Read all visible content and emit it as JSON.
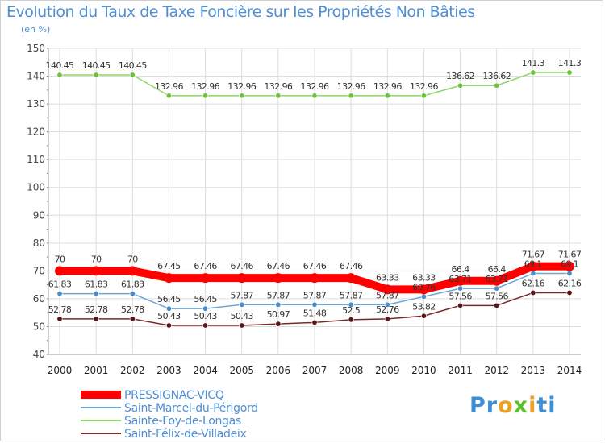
{
  "chart_data": {
    "type": "line",
    "title": "Evolution du Taux de Taxe Foncière sur les Propriétés Non Bâties",
    "subtitle": "(en %)",
    "xlabel": "",
    "ylabel": "",
    "ylim": [
      40,
      150
    ],
    "yticks": [
      40,
      50,
      60,
      70,
      80,
      90,
      100,
      110,
      120,
      130,
      140,
      150
    ],
    "grid": true,
    "legend_position": "bottom-left",
    "x": [
      "2000",
      "2001",
      "2002",
      "2003",
      "2004",
      "2005",
      "2006",
      "2007",
      "2008",
      "2009",
      "2010",
      "2011",
      "2012",
      "2013",
      "2014"
    ],
    "series": [
      {
        "name": "PRESSIGNAC-VICQ",
        "color": "#ff0000",
        "values": [
          70,
          70,
          70,
          67.45,
          67.46,
          67.46,
          67.46,
          67.46,
          67.46,
          63.33,
          63.33,
          66.4,
          66.4,
          71.67,
          71.67
        ],
        "labels": [
          "70",
          "70",
          "70",
          "67.45",
          "67.46",
          "67.46",
          "67.46",
          "67.46",
          "67.46",
          "63.33",
          "63.33",
          "66.4",
          "66.4",
          "71.67",
          "71.67"
        ]
      },
      {
        "name": "Saint-Marcel-du-Périgord",
        "color": "#6aa6d8",
        "values": [
          61.83,
          61.83,
          61.83,
          56.45,
          56.45,
          57.87,
          57.87,
          57.87,
          57.87,
          57.87,
          60.76,
          63.71,
          63.71,
          69.1,
          69.1
        ],
        "labels": [
          "61.83",
          "61.83",
          "61.83",
          "56.45",
          "56.45",
          "57.87",
          "57.87",
          "57.87",
          "57.87",
          "57.87",
          "60.76",
          "63.71",
          "63.71",
          "69.1",
          "69.1"
        ]
      },
      {
        "name": "Sainte-Foy-de-Longas",
        "color": "#8fd66a",
        "values": [
          140.45,
          140.45,
          140.45,
          132.96,
          132.96,
          132.96,
          132.96,
          132.96,
          132.96,
          132.96,
          132.96,
          136.62,
          136.62,
          141.3,
          141.3
        ],
        "labels": [
          "140.45",
          "140.45",
          "140.45",
          "132.96",
          "132.96",
          "132.96",
          "132.96",
          "132.96",
          "132.96",
          "132.96",
          "132.96",
          "136.62",
          "136.62",
          "141.3",
          "141.3"
        ]
      },
      {
        "name": "Saint-Félix-de-Villadeix",
        "color": "#7a2a2a",
        "values": [
          52.78,
          52.78,
          52.78,
          50.43,
          50.43,
          50.43,
          50.97,
          51.48,
          52.5,
          52.76,
          53.82,
          57.56,
          57.56,
          62.16,
          62.16
        ],
        "labels": [
          "52.78",
          "52.78",
          "52.78",
          "50.43",
          "50.43",
          "50.43",
          "50.97",
          "51.48",
          "52.5",
          "52.76",
          "53.82",
          "57.56",
          "57.56",
          "62.16",
          "62.16"
        ]
      }
    ]
  },
  "logo": {
    "parts": [
      "Pr",
      "o",
      "x",
      "i",
      "ti"
    ],
    "colors": [
      "#3f8fd6",
      "#f0a020",
      "#5cbf2a",
      "#f0a020",
      "#3f8fd6"
    ]
  }
}
